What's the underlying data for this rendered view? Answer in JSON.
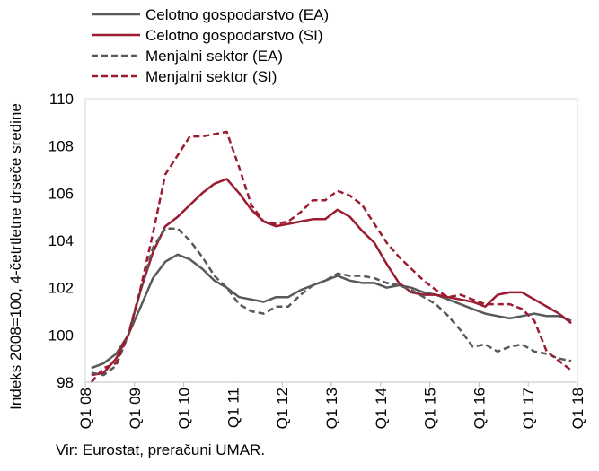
{
  "chart_data": {
    "type": "line",
    "ylabel": "Indeks 2008=100, 4-četrtletne drseče sredine",
    "ylim": [
      98,
      110
    ],
    "y_ticks": [
      "98",
      "100",
      "102",
      "104",
      "106",
      "108",
      "110"
    ],
    "x_tick_labels": [
      "Q1 08",
      "Q1 09",
      "Q1 10",
      "Q1 11",
      "Q1 12",
      "Q1 13",
      "Q1 14",
      "Q1 15",
      "Q1 16",
      "Q1 17",
      "Q1 18"
    ],
    "x": [
      "Q1 08",
      "Q2 08",
      "Q3 08",
      "Q4 08",
      "Q1 09",
      "Q2 09",
      "Q3 09",
      "Q4 09",
      "Q1 10",
      "Q2 10",
      "Q3 10",
      "Q4 10",
      "Q1 11",
      "Q2 11",
      "Q3 11",
      "Q4 11",
      "Q1 12",
      "Q2 12",
      "Q3 12",
      "Q4 12",
      "Q1 13",
      "Q2 13",
      "Q3 13",
      "Q4 13",
      "Q1 14",
      "Q2 14",
      "Q3 14",
      "Q4 14",
      "Q1 15",
      "Q2 15",
      "Q3 15",
      "Q4 15",
      "Q1 16",
      "Q2 16",
      "Q3 16",
      "Q4 16",
      "Q1 17",
      "Q2 17",
      "Q3 17",
      "Q4 17"
    ],
    "grid": false,
    "legend_position": "top-left",
    "series": [
      {
        "name": "Celotno gospodarstvo (EA)",
        "color": "#595959",
        "dash": "solid",
        "values": [
          98.6,
          98.8,
          99.2,
          100.0,
          101.2,
          102.4,
          103.1,
          103.4,
          103.2,
          102.8,
          102.3,
          102.0,
          101.6,
          101.5,
          101.4,
          101.6,
          101.6,
          101.9,
          102.1,
          102.3,
          102.5,
          102.3,
          102.2,
          102.2,
          102.0,
          102.1,
          102.0,
          101.8,
          101.7,
          101.5,
          101.3,
          101.1,
          100.9,
          100.8,
          100.7,
          100.8,
          100.9,
          100.8,
          100.8,
          100.6
        ]
      },
      {
        "name": "Celotno gospodarstvo (SI)",
        "color": "#9b1b30",
        "dash": "solid",
        "values": [
          98.3,
          98.4,
          99.0,
          100.0,
          101.9,
          103.5,
          104.6,
          105.0,
          105.5,
          106.0,
          106.4,
          106.6,
          106.0,
          105.3,
          104.8,
          104.6,
          104.7,
          104.8,
          104.9,
          104.9,
          105.3,
          105.0,
          104.4,
          103.9,
          103.0,
          102.2,
          101.8,
          101.7,
          101.7,
          101.6,
          101.5,
          101.4,
          101.2,
          101.7,
          101.8,
          101.8,
          101.5,
          101.2,
          100.9,
          100.5
        ]
      },
      {
        "name": "Menjalni sektor (EA)",
        "color": "#595959",
        "dash": "dashed",
        "values": [
          98.4,
          98.3,
          98.7,
          100.0,
          101.9,
          103.7,
          104.5,
          104.5,
          104.0,
          103.3,
          102.5,
          102.0,
          101.3,
          101.0,
          100.9,
          101.2,
          101.2,
          101.7,
          102.1,
          102.3,
          102.6,
          102.5,
          102.5,
          102.4,
          102.2,
          102.1,
          101.9,
          101.6,
          101.3,
          100.8,
          100.2,
          99.5,
          99.6,
          99.3,
          99.5,
          99.6,
          99.3,
          99.2,
          99.0,
          98.9
        ]
      },
      {
        "name": "Menjalni sektor (SI)",
        "color": "#9b1b30",
        "dash": "dashed",
        "values": [
          98.0,
          98.6,
          98.8,
          100.0,
          102.0,
          104.3,
          106.8,
          107.6,
          108.4,
          108.4,
          108.5,
          108.6,
          107.1,
          105.5,
          104.8,
          104.7,
          104.8,
          105.2,
          105.7,
          105.7,
          106.1,
          105.9,
          105.5,
          104.7,
          103.9,
          103.3,
          102.8,
          102.3,
          101.9,
          101.6,
          101.7,
          101.5,
          101.3,
          101.3,
          101.3,
          101.1,
          100.6,
          99.3,
          98.9,
          98.5
        ]
      }
    ]
  },
  "source_note": "Vir: Eurostat, preračuni UMAR."
}
